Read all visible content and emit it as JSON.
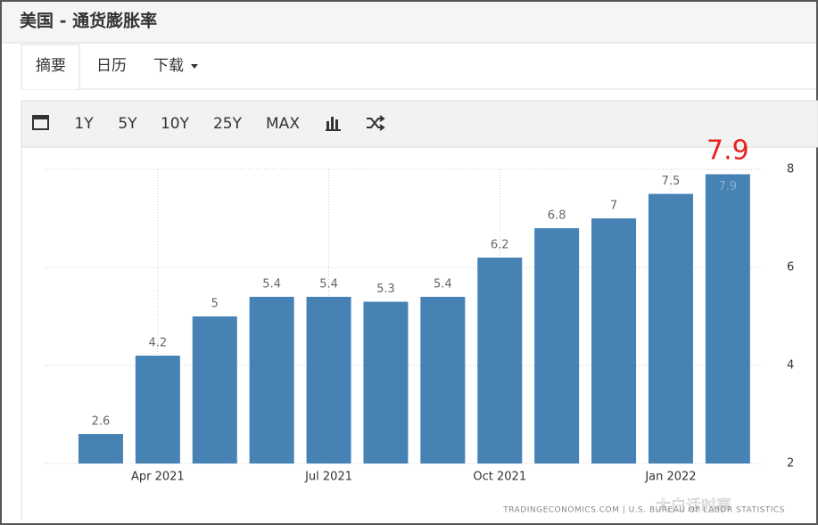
{
  "header": {
    "title": "美国 - 通货膨胀率"
  },
  "tabs": [
    "摘要",
    "日历",
    "下载"
  ],
  "toolbar": [
    "1Y",
    "5Y",
    "10Y",
    "25Y",
    "MAX"
  ],
  "chart_data": {
    "type": "bar",
    "categories": [
      null,
      "Apr 2021",
      null,
      null,
      "Jul 2021",
      null,
      null,
      "Oct 2021",
      null,
      null,
      "Jan 2022",
      null
    ],
    "values": [
      2.6,
      4.2,
      5,
      5.4,
      5.4,
      5.3,
      5.4,
      6.2,
      6.8,
      7,
      7.5,
      7.9
    ],
    "color": "#4682b4",
    "ylim": [
      2,
      8
    ],
    "yticks": [
      2,
      4,
      6,
      8
    ],
    "grid": true,
    "annotation": "7.9",
    "source": "TRADINGECONOMICS.COM | U.S. BUREAU OF LABOR STATISTICS"
  },
  "watermark": "大白话时事"
}
